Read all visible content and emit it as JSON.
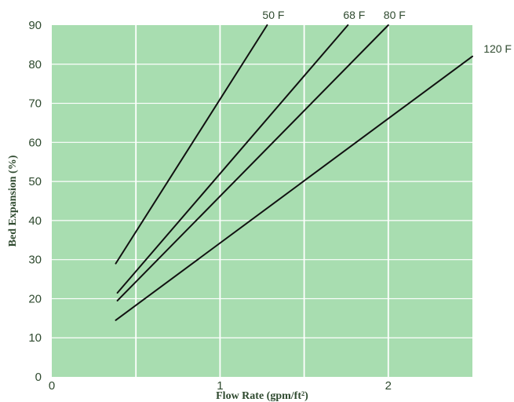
{
  "chart_data": {
    "type": "line",
    "xlabel": "Flow Rate (gpm/ft²)",
    "ylabel": "Bed Expansion (%)",
    "xlim": [
      0,
      2.5
    ],
    "ylim": [
      0,
      90
    ],
    "x_ticks": [
      {
        "value": 0,
        "label": "0"
      },
      {
        "value": 1,
        "label": "1"
      },
      {
        "value": 2,
        "label": "2"
      }
    ],
    "y_ticks": [
      {
        "value": 0,
        "label": "0"
      },
      {
        "value": 10,
        "label": "10"
      },
      {
        "value": 20,
        "label": "20"
      },
      {
        "value": 30,
        "label": "30"
      },
      {
        "value": 40,
        "label": "40"
      },
      {
        "value": 50,
        "label": "50"
      },
      {
        "value": 60,
        "label": "60"
      },
      {
        "value": 70,
        "label": "70"
      },
      {
        "value": 80,
        "label": "80"
      },
      {
        "value": 90,
        "label": "90"
      }
    ],
    "grid": true,
    "series": [
      {
        "name": "50 F",
        "points": [
          [
            0.38,
            29
          ],
          [
            1.28,
            90
          ]
        ]
      },
      {
        "name": "68 F",
        "points": [
          [
            0.39,
            21.5
          ],
          [
            1.76,
            90
          ]
        ]
      },
      {
        "name": "80 F",
        "points": [
          [
            0.39,
            19.5
          ],
          [
            2.0,
            90
          ]
        ]
      },
      {
        "name": "120 F",
        "points": [
          [
            0.38,
            14.5
          ],
          [
            2.5,
            82
          ]
        ]
      }
    ],
    "colors": {
      "plot_background": "#a8ddb0",
      "grid": "#ffffff",
      "line": "#111111",
      "text": "#2f4a2f"
    }
  }
}
